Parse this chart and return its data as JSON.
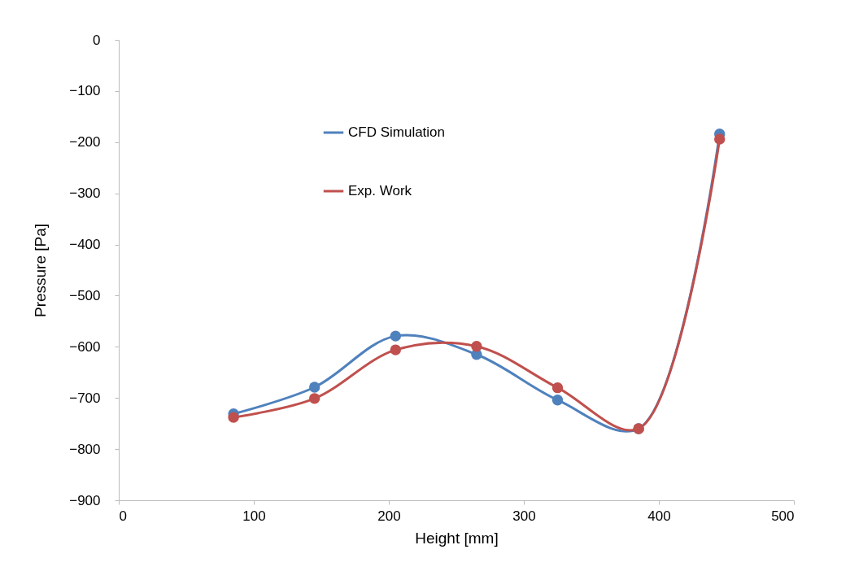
{
  "chart_data": {
    "type": "line",
    "xlabel": "Height [mm]",
    "ylabel": "Pressure [Pa]",
    "xlim": [
      0,
      500
    ],
    "xticks": [
      0,
      100,
      200,
      300,
      400,
      500
    ],
    "ylim": [
      -900,
      0
    ],
    "yticks": [
      -900,
      -800,
      -700,
      -600,
      -500,
      -400,
      -300,
      -200,
      -100,
      0
    ],
    "grid": false,
    "legend": "top left",
    "marker": "circle",
    "line_style": "solid",
    "series": [
      {
        "name": "CFD Simulation",
        "color": "#4f81bd",
        "x": [
          85,
          145,
          205,
          265,
          325,
          385,
          445
        ],
        "values": [
          -731,
          -679,
          -579,
          -615,
          -704,
          -760,
          -184
        ]
      },
      {
        "name": "Exp. Work",
        "color": "#c0504d",
        "x": [
          85,
          145,
          205,
          265,
          325,
          385,
          445
        ],
        "values": [
          -738,
          -701,
          -606,
          -599,
          -680,
          -760,
          -194
        ]
      }
    ]
  }
}
